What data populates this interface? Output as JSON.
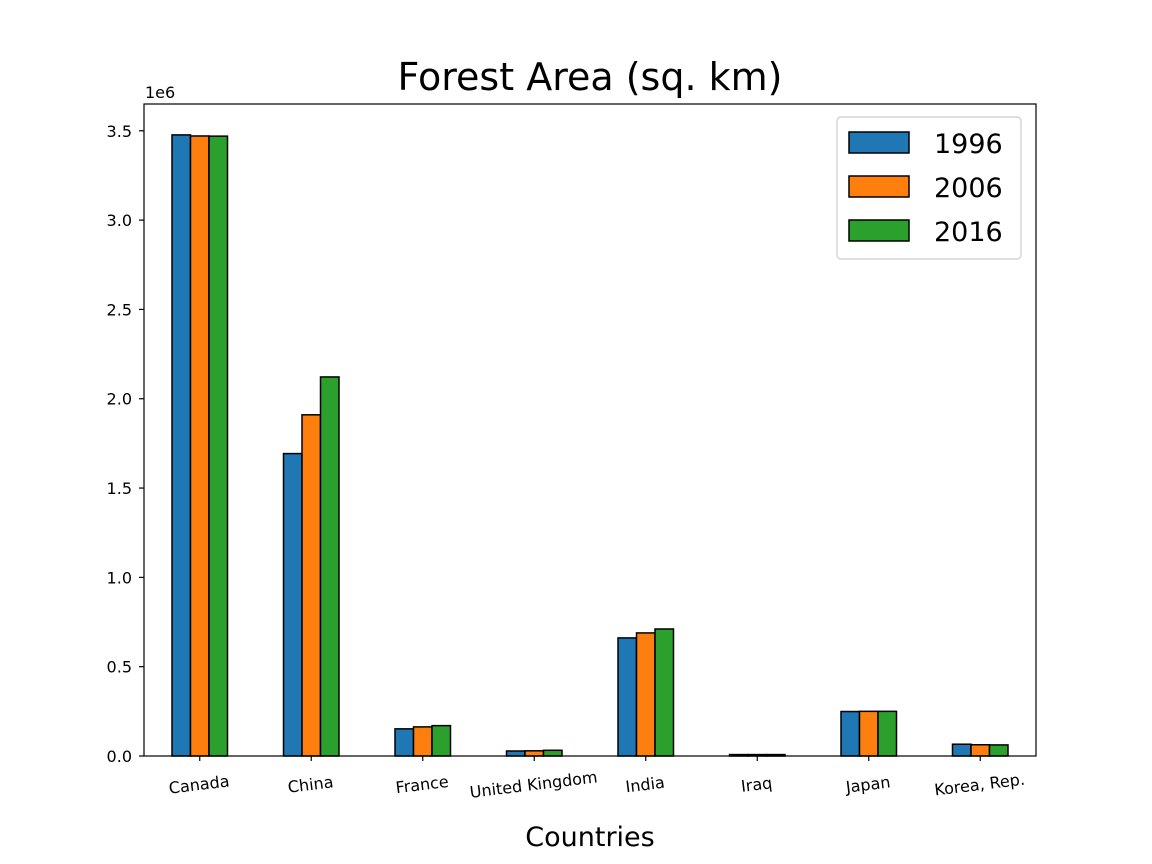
{
  "chart_data": {
    "type": "bar",
    "title": "Forest Area (sq. km)",
    "xlabel": "Countries",
    "ylabel": "",
    "y_offset_text": "1e6",
    "ylim": [
      0,
      3650000
    ],
    "yticks": [
      0,
      500000,
      1000000,
      1500000,
      2000000,
      2500000,
      3000000,
      3500000
    ],
    "ytick_labels": [
      "0.0",
      "0.5",
      "1.0",
      "1.5",
      "2.0",
      "2.5",
      "3.0",
      "3.5"
    ],
    "categories": [
      "Canada",
      "China",
      "France",
      "United Kingdom",
      "India",
      "Iraq",
      "Japan",
      "Korea, Rep."
    ],
    "series": [
      {
        "name": "1996",
        "color": "#1f77b4",
        "values": [
          3477000,
          1693000,
          152000,
          28000,
          661000,
          8000,
          249000,
          66000
        ]
      },
      {
        "name": "2006",
        "color": "#ff7f0e",
        "values": [
          3471000,
          1910000,
          163000,
          29000,
          689000,
          8000,
          250000,
          63000
        ]
      },
      {
        "name": "2016",
        "color": "#2ca02c",
        "values": [
          3470000,
          2122000,
          170000,
          32000,
          711000,
          8000,
          250000,
          62000
        ]
      }
    ],
    "legend_position": "top-right",
    "grid": false
  }
}
